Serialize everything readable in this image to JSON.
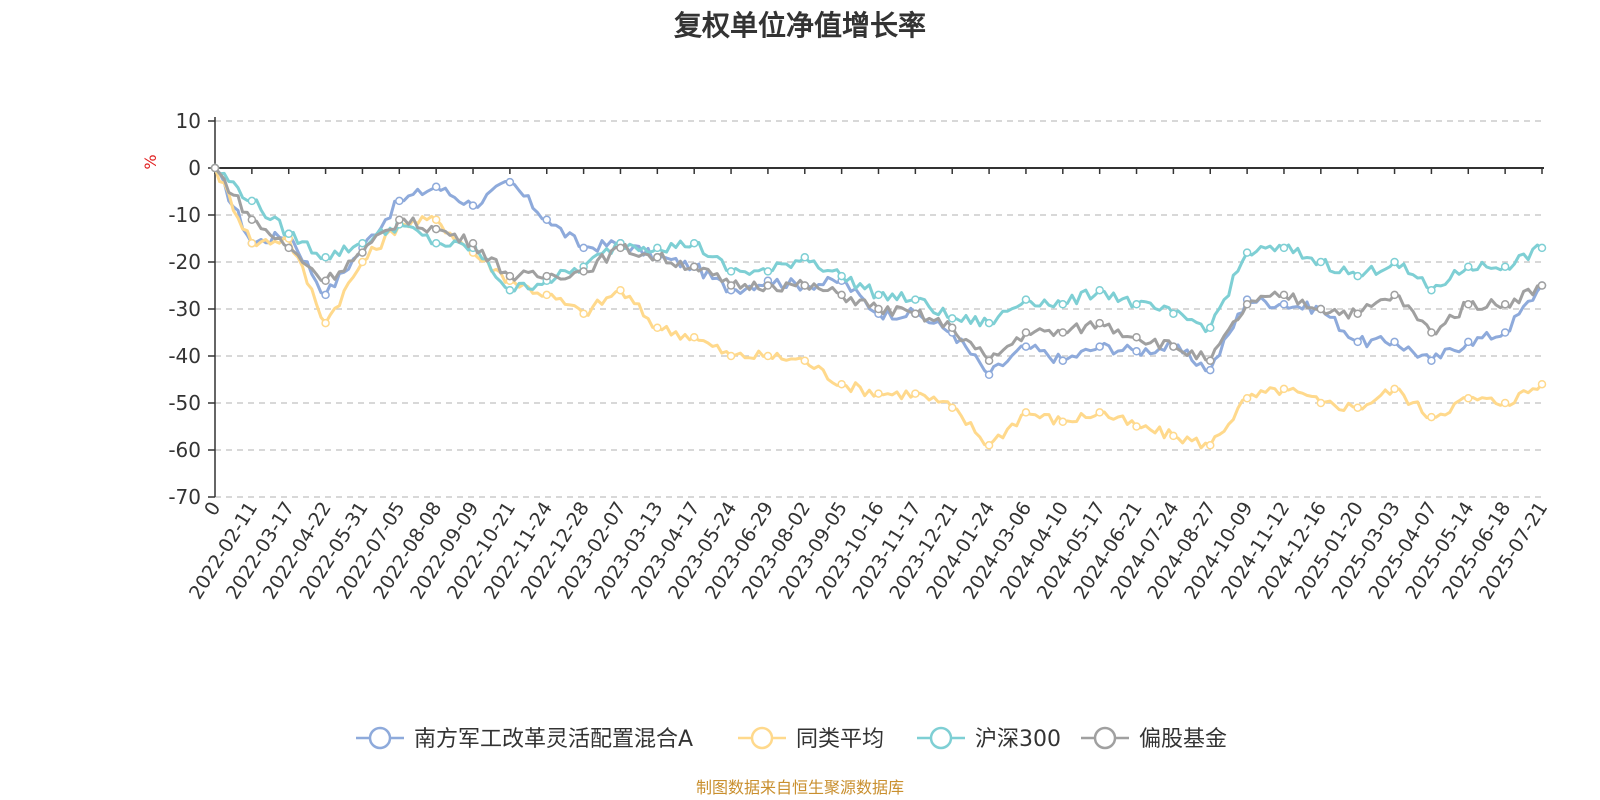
{
  "chart_data": {
    "type": "line",
    "title": "复权单位净值增长率",
    "ylabel": "%",
    "xlabel": "",
    "ylim": [
      -70,
      10
    ],
    "yticks": [
      10,
      0,
      -10,
      -20,
      -30,
      -40,
      -50,
      -60,
      -70
    ],
    "grid": true,
    "legend_position": "bottom",
    "x": [
      "0",
      "2022-02-11",
      "2022-03-17",
      "2022-04-22",
      "2022-05-31",
      "2022-07-05",
      "2022-08-08",
      "2022-09-09",
      "2022-10-21",
      "2022-11-24",
      "2022-12-28",
      "2023-02-07",
      "2023-03-13",
      "2023-04-17",
      "2023-05-24",
      "2023-06-29",
      "2023-08-02",
      "2023-09-05",
      "2023-10-16",
      "2023-11-17",
      "2023-12-21",
      "2024-01-24",
      "2024-03-06",
      "2024-04-10",
      "2024-05-17",
      "2024-06-21",
      "2024-07-24",
      "2024-08-27",
      "2024-10-09",
      "2024-11-12",
      "2024-12-16",
      "2025-01-20",
      "2025-03-03",
      "2025-04-07",
      "2025-05-14",
      "2025-06-18",
      "2025-07-21"
    ],
    "series": [
      {
        "name": "南方军工改革灵活配置混合A",
        "color": "#8eaadb",
        "values": [
          0,
          -16,
          -14,
          -27,
          -17,
          -7,
          -4,
          -8,
          -3,
          -11,
          -17,
          -16,
          -19,
          -21,
          -26,
          -24,
          -25,
          -24,
          -31,
          -31,
          -35,
          -44,
          -38,
          -41,
          -38,
          -39,
          -38,
          -43,
          -28,
          -29,
          -30,
          -37,
          -37,
          -41,
          -37,
          -35,
          -25
        ]
      },
      {
        "name": "同类平均",
        "color": "#ffd98c",
        "values": [
          0,
          -16,
          -15,
          -33,
          -20,
          -12,
          -11,
          -18,
          -24,
          -27,
          -31,
          -26,
          -34,
          -36,
          -40,
          -40,
          -41,
          -46,
          -48,
          -48,
          -51,
          -59,
          -52,
          -54,
          -52,
          -55,
          -57,
          -59,
          -49,
          -47,
          -50,
          -51,
          -47,
          -53,
          -49,
          -50,
          -46
        ]
      },
      {
        "name": "沪深300",
        "color": "#7ecfd4",
        "values": [
          0,
          -7,
          -14,
          -19,
          -16,
          -12,
          -16,
          -17,
          -26,
          -24,
          -21,
          -16,
          -17,
          -16,
          -22,
          -22,
          -19,
          -23,
          -27,
          -28,
          -32,
          -33,
          -28,
          -29,
          -26,
          -29,
          -31,
          -34,
          -18,
          -17,
          -20,
          -23,
          -20,
          -26,
          -21,
          -21,
          -17
        ]
      },
      {
        "name": "偏股基金",
        "color": "#a0a0a0",
        "values": [
          0,
          -11,
          -17,
          -24,
          -18,
          -11,
          -13,
          -16,
          -23,
          -23,
          -22,
          -17,
          -19,
          -21,
          -25,
          -25,
          -25,
          -27,
          -30,
          -31,
          -34,
          -41,
          -35,
          -35,
          -33,
          -36,
          -38,
          -41,
          -29,
          -27,
          -30,
          -31,
          -27,
          -35,
          -29,
          -29,
          -25
        ]
      }
    ]
  },
  "source_note": "制图数据来自恒生聚源数据库"
}
